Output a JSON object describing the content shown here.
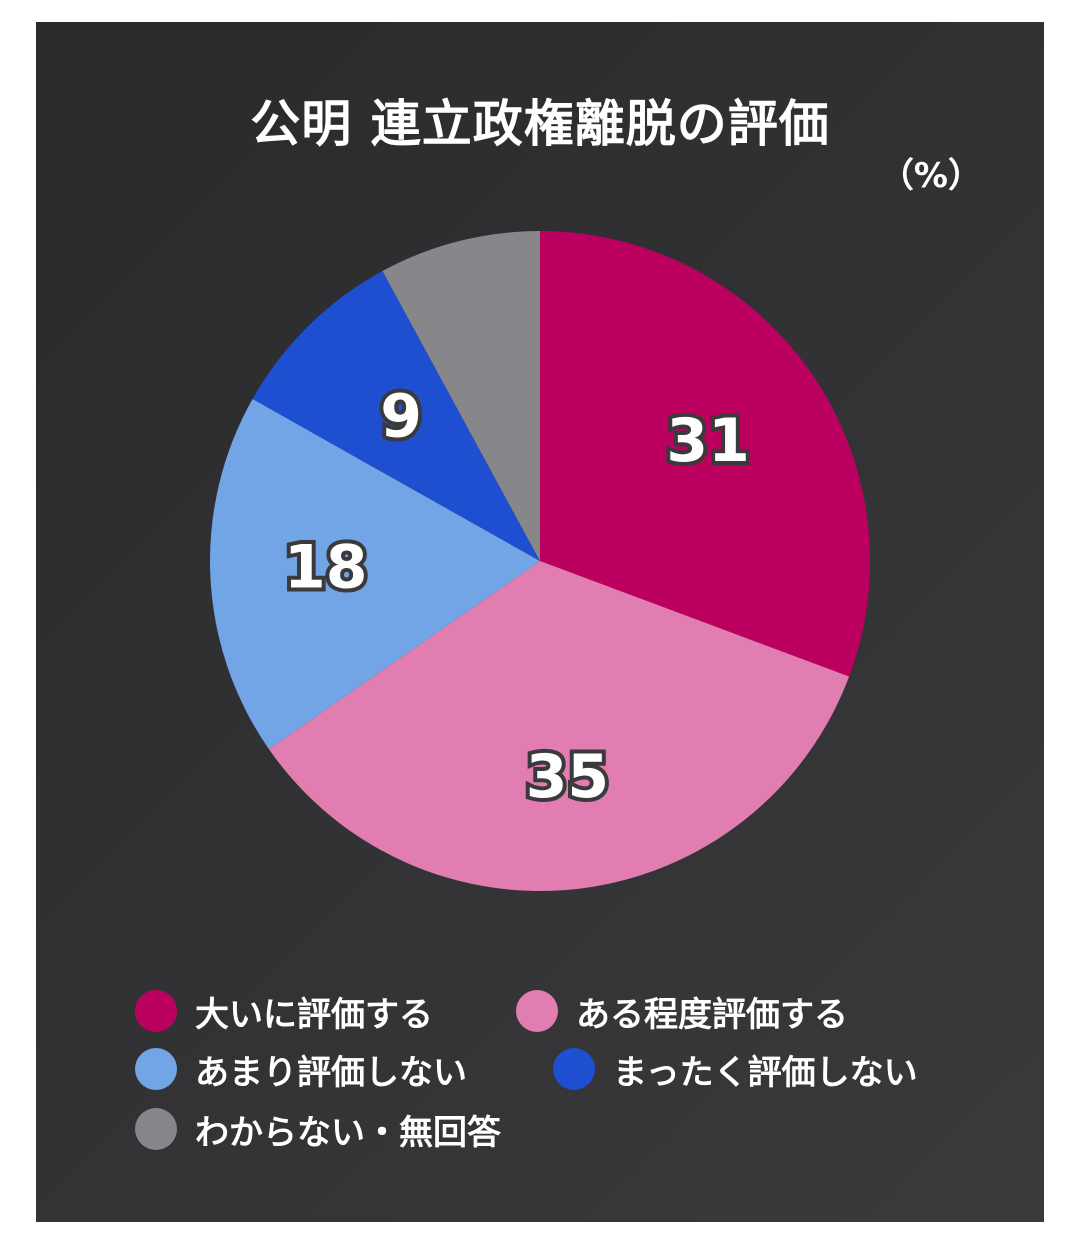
{
  "title": "公明 連立政権離脱の評価",
  "unit": "（%）",
  "chart_data": {
    "type": "pie",
    "title": "公明 連立政権離脱の評価",
    "unit": "（%）",
    "slices": [
      {
        "name": "大いに評価する",
        "value": 31,
        "label": "31",
        "color": "#bc0060"
      },
      {
        "name": "ある程度評価する",
        "value": 35,
        "label": "35",
        "color": "#e27db2"
      },
      {
        "name": "あまり評価しない",
        "value": 18,
        "label": "18",
        "color": "#72a5e6"
      },
      {
        "name": "まったく評価しない",
        "value": 9,
        "label": "9",
        "color": "#1e4fd0"
      },
      {
        "name": "わからない・無回答",
        "value": 8,
        "label": "",
        "color": "#87868a"
      }
    ],
    "legend_position": "bottom"
  }
}
